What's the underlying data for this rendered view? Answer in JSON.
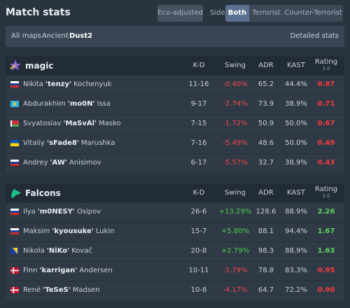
{
  "header": {
    "title": "Match stats",
    "eco": "Eco-adjusted",
    "side_label": "Side",
    "sides": [
      "Both",
      "Terrorist",
      "Counter-Terrorist"
    ]
  },
  "filters": {
    "maps": [
      "All maps",
      "Ancient",
      "Dust2"
    ],
    "detailed": "Detailed stats"
  },
  "teams": [
    {
      "name": "magic",
      "columns": [
        "K-D",
        "Swing",
        "ADR",
        "KAST"
      ],
      "rating": {
        "label": "Rating",
        "version": "3.0"
      },
      "players": [
        {
          "first": "Nikita",
          "nick": "'tenzy'",
          "last": "Kochenyuk",
          "kd": "11-16",
          "swing": "-0.40%",
          "adr": "65.2",
          "kast": "44.4%",
          "rating": "0.87"
        },
        {
          "first": "Abdurakhim",
          "nick": "'mo0N'",
          "last": "Issa",
          "kd": "9-17",
          "swing": "-2.74%",
          "adr": "73.9",
          "kast": "38.9%",
          "rating": "0.71"
        },
        {
          "first": "Svyatoslav",
          "nick": "'MaSvAl'",
          "last": "Masko",
          "kd": "7-15",
          "swing": "-1.72%",
          "adr": "50.9",
          "kast": "50.0%",
          "rating": "0.67"
        },
        {
          "first": "Vitaliy",
          "nick": "'sFade8'",
          "last": "Marushka",
          "kd": "7-16",
          "swing": "-5.49%",
          "adr": "48.6",
          "kast": "50.0%",
          "rating": "0.49"
        },
        {
          "first": "Andrey",
          "nick": "'AW'",
          "last": "Anisimov",
          "kd": "6-17",
          "swing": "-5.57%",
          "adr": "32.7",
          "kast": "38.9%",
          "rating": "0.43"
        }
      ]
    },
    {
      "name": "Falcons",
      "columns": [
        "K-D",
        "Swing",
        "ADR",
        "KAST"
      ],
      "rating": {
        "label": "Rating",
        "version": "3.0"
      },
      "players": [
        {
          "first": "Ilya",
          "nick": "'m0NESY'",
          "last": "Osipov",
          "kd": "26-6",
          "swing": "+13.29%",
          "adr": "128.6",
          "kast": "88.9%",
          "rating": "2.26"
        },
        {
          "first": "Maksim",
          "nick": "'kyousuke'",
          "last": "Lukin",
          "kd": "15-7",
          "swing": "+5.80%",
          "adr": "88.1",
          "kast": "94.4%",
          "rating": "1.67"
        },
        {
          "first": "Nikola",
          "nick": "'NiKo'",
          "last": "Kovač",
          "kd": "20-8",
          "swing": "+2.79%",
          "adr": "98.3",
          "kast": "88.9%",
          "rating": "1.63"
        },
        {
          "first": "Finn",
          "nick": "'karrigan'",
          "last": "Andersen",
          "kd": "10-11",
          "swing": "-1.79%",
          "adr": "78.8",
          "kast": "83.3%",
          "rating": "0.95"
        },
        {
          "first": "René",
          "nick": "'TeSeS'",
          "last": "Madsen",
          "kd": "10-8",
          "swing": "-4.17%",
          "adr": "64.7",
          "kast": "72.2%",
          "rating": "0.90"
        }
      ]
    }
  ]
}
